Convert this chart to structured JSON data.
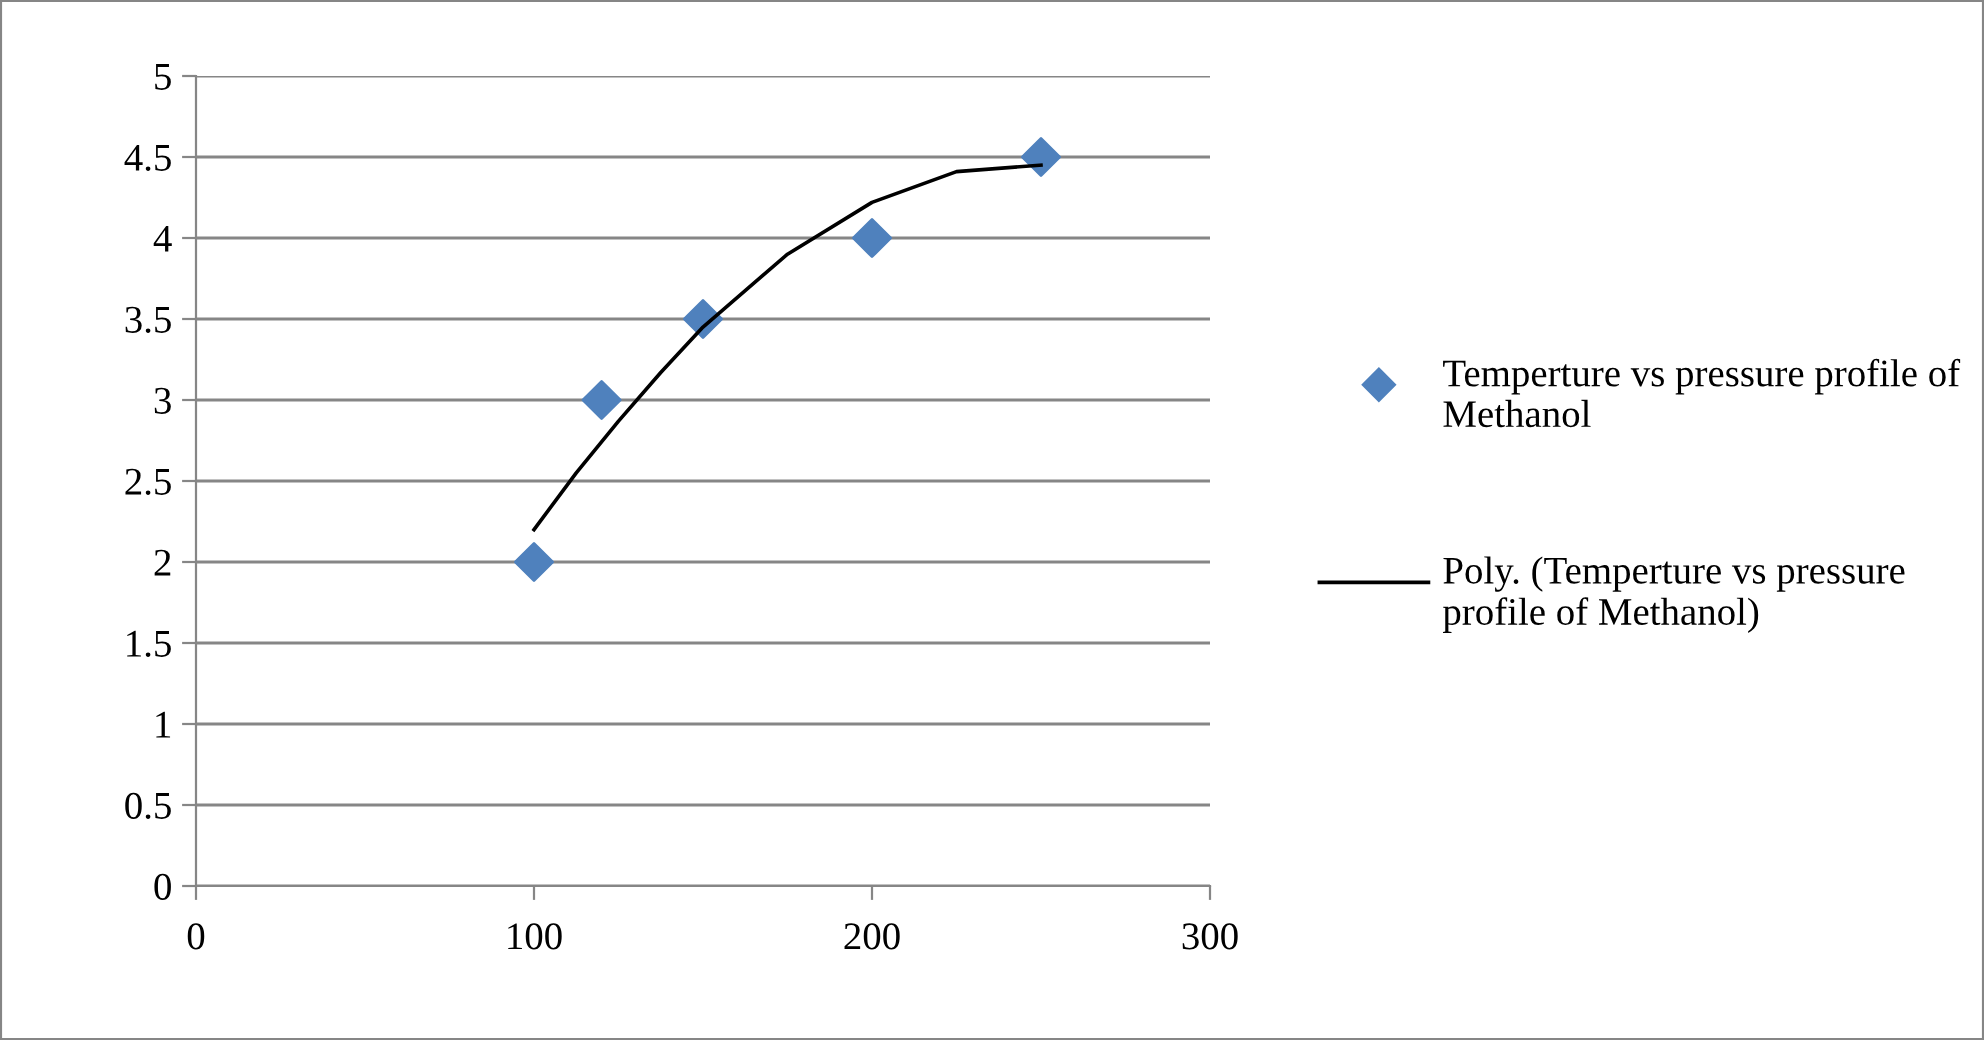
{
  "chart_data": {
    "type": "scatter",
    "xlim": [
      0,
      300
    ],
    "xticks": [
      0,
      100,
      200,
      300
    ],
    "ylim": [
      0,
      5
    ],
    "yticks": [
      0,
      0.5,
      1,
      1.5,
      2,
      2.5,
      3,
      3.5,
      4,
      4.5,
      5
    ],
    "grid": "y",
    "legend": "right",
    "marker": "diamond",
    "series": [
      {
        "name": "Temperture vs pressure profile of Methanol",
        "color": "#4f81bd",
        "x": [
          100,
          120,
          150,
          200,
          250
        ],
        "values": [
          2,
          3,
          3.5,
          4,
          4.5
        ]
      },
      {
        "type": "line",
        "name": "Poly. (Temperture vs pressure profile of Methanol)",
        "color": "#000000",
        "marker": "none",
        "line_style": "solid",
        "x": [
          100,
          112.5,
          125,
          137.5,
          150,
          175,
          200,
          225,
          250
        ],
        "values": [
          2.2,
          2.55,
          2.87,
          3.17,
          3.45,
          3.9,
          4.22,
          4.41,
          4.45
        ]
      }
    ]
  }
}
